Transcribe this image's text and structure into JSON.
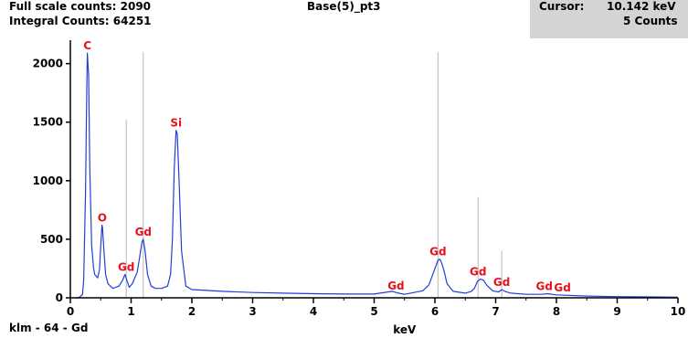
{
  "header": {
    "full_scale": "Full scale counts: 2090",
    "integral": "Integral Counts: 64251",
    "title": "Base(5)_pt3",
    "cursor_label": "Cursor:",
    "cursor_value": "10.142 keV",
    "cursor_counts": "5 Counts"
  },
  "footer": {
    "marker_text": "klm - 64 - Gd"
  },
  "colors": {
    "spectrum": "#1f3fd8",
    "element_label": "#e8111b",
    "marker_line": "#b8b8b8",
    "axis": "#000000",
    "cursor_bg": "#d4d4d4"
  },
  "chart_data": {
    "type": "line",
    "title": "Base(5)_pt3",
    "xlabel": "keV",
    "ylabel": "",
    "xlim": [
      0,
      10
    ],
    "ylim": [
      0,
      2200
    ],
    "x_ticks": [
      0,
      1,
      2,
      3,
      4,
      5,
      6,
      7,
      8,
      9,
      10
    ],
    "y_ticks": [
      0,
      500,
      1000,
      1500,
      2000
    ],
    "x": [
      0.1,
      0.15,
      0.2,
      0.22,
      0.25,
      0.27,
      0.28,
      0.3,
      0.32,
      0.35,
      0.38,
      0.4,
      0.45,
      0.48,
      0.5,
      0.52,
      0.53,
      0.55,
      0.58,
      0.62,
      0.7,
      0.8,
      0.86,
      0.9,
      0.93,
      0.97,
      1.02,
      1.1,
      1.15,
      1.18,
      1.2,
      1.23,
      1.27,
      1.33,
      1.4,
      1.5,
      1.6,
      1.65,
      1.68,
      1.71,
      1.74,
      1.76,
      1.79,
      1.83,
      1.9,
      2.0,
      2.5,
      3.0,
      3.5,
      4.0,
      4.5,
      5.0,
      5.3,
      5.4,
      5.5,
      5.8,
      5.9,
      5.95,
      6.0,
      6.05,
      6.08,
      6.11,
      6.15,
      6.2,
      6.3,
      6.5,
      6.6,
      6.65,
      6.7,
      6.75,
      6.8,
      6.85,
      6.95,
      7.05,
      7.1,
      7.15,
      7.25,
      7.5,
      7.75,
      7.85,
      8.0,
      8.5,
      9.0,
      9.5,
      10.0
    ],
    "series": [
      {
        "values": [
          0,
          5,
          30,
          150,
          900,
          1800,
          2090,
          1900,
          1100,
          450,
          260,
          200,
          170,
          240,
          450,
          620,
          600,
          420,
          200,
          120,
          80,
          100,
          150,
          200,
          150,
          90,
          120,
          220,
          380,
          480,
          500,
          400,
          200,
          100,
          80,
          80,
          100,
          200,
          500,
          1100,
          1430,
          1400,
          1000,
          400,
          100,
          70,
          55,
          45,
          40,
          35,
          32,
          32,
          55,
          40,
          30,
          60,
          110,
          180,
          250,
          320,
          330,
          300,
          230,
          120,
          55,
          40,
          55,
          80,
          140,
          160,
          150,
          110,
          60,
          50,
          70,
          55,
          40,
          30,
          30,
          35,
          25,
          15,
          10,
          8,
          5
        ]
      }
    ],
    "element_markers": [
      {
        "label": "C",
        "x": 0.28,
        "marker_height": null,
        "label_y": 2090
      },
      {
        "label": "O",
        "x": 0.525,
        "marker_height": null,
        "label_y": 620
      },
      {
        "label": "Gd",
        "x": 0.92,
        "marker_height": 1520,
        "label_y": 200
      },
      {
        "label": "Gd",
        "x": 1.2,
        "marker_height": 2100,
        "label_y": 500
      },
      {
        "label": "Si",
        "x": 1.74,
        "marker_height": null,
        "label_y": 1430
      },
      {
        "label": "Gd",
        "x": 5.36,
        "marker_height": null,
        "label_y": 40
      },
      {
        "label": "Gd",
        "x": 6.05,
        "marker_height": 2100,
        "label_y": 330
      },
      {
        "label": "Gd",
        "x": 6.71,
        "marker_height": 860,
        "label_y": 160
      },
      {
        "label": "Gd",
        "x": 7.1,
        "marker_height": 400,
        "label_y": 70
      },
      {
        "label": "Gd",
        "x": 7.8,
        "marker_height": null,
        "label_y": 35
      },
      {
        "label": "Gd",
        "x": 8.1,
        "marker_height": null,
        "label_y": 25
      }
    ]
  }
}
